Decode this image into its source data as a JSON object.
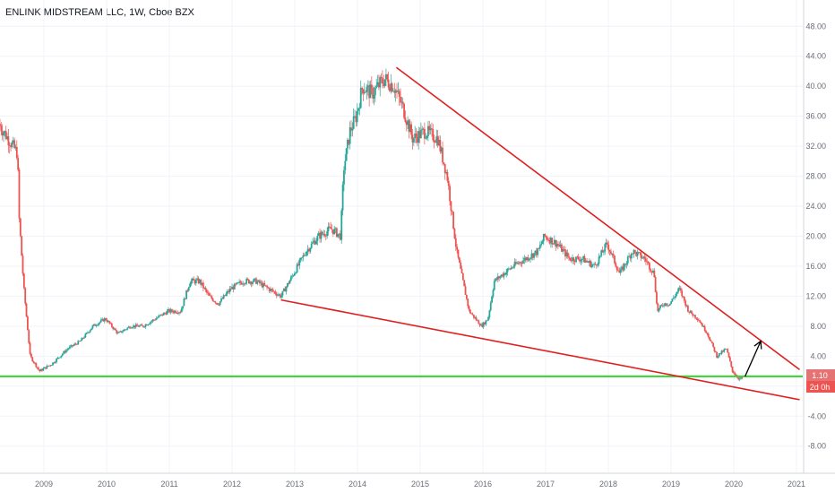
{
  "header": {
    "title": "ENLINK MIDSTREAM LLC, 1W, Cboe BZX"
  },
  "price_badge": {
    "value": "1.10",
    "countdown": "2d 0h"
  },
  "colors": {
    "up": "#26a69a",
    "down": "#ef5350",
    "trend": "#e02020",
    "support": "#31d431",
    "badge": "#e57373",
    "grid": "#f0f3fa",
    "arrow": "#000000"
  },
  "chart_data": {
    "type": "line",
    "title": "ENLINK MIDSTREAM LLC, 1W, Cboe BZX",
    "xlabel": "",
    "ylabel": "",
    "xlim": [
      2008.3,
      2021.1
    ],
    "ylim": [
      -11.5,
      51.5
    ],
    "grid": true,
    "x_ticks": [
      "2009",
      "2010",
      "2011",
      "2012",
      "2013",
      "2014",
      "2015",
      "2016",
      "2017",
      "2018",
      "2019",
      "2020",
      "2021"
    ],
    "y_ticks": [
      "48.00",
      "44.00",
      "40.00",
      "36.00",
      "32.00",
      "28.00",
      "24.00",
      "20.00",
      "16.00",
      "12.00",
      "8.00",
      "4.00",
      "0.00",
      "-4.00",
      "-8.00"
    ],
    "series": [
      {
        "x": [
          2008.3,
          2008.45,
          2008.6,
          2008.62,
          2008.7,
          2008.8,
          2008.95,
          2009.15,
          2009.4,
          2009.6,
          2009.8,
          2010.0,
          2010.2,
          2010.4,
          2010.6,
          2010.8,
          2011.0,
          2011.2,
          2011.35,
          2011.5,
          2011.65,
          2011.8,
          2012.0,
          2012.2,
          2012.4,
          2012.6,
          2012.8,
          2013.0,
          2013.2,
          2013.4,
          2013.6,
          2013.75,
          2013.8,
          2013.9,
          2014.0,
          2014.1,
          2014.25,
          2014.45,
          2014.6,
          2014.75,
          2014.9,
          2015.1,
          2015.3,
          2015.45,
          2015.6,
          2015.8,
          2016.0,
          2016.1,
          2016.2,
          2016.35,
          2016.5,
          2016.7,
          2016.9,
          2017.0,
          2017.2,
          2017.4,
          2017.6,
          2017.8,
          2018.0,
          2018.2,
          2018.4,
          2018.6,
          2018.75,
          2018.8,
          2018.9,
          2019.0,
          2019.15,
          2019.3,
          2019.45,
          2019.6,
          2019.75,
          2019.9,
          2020.0,
          2020.1,
          2020.15
        ],
        "values": [
          35,
          33,
          31,
          23,
          13,
          4,
          2,
          3,
          5,
          6,
          8,
          9,
          7,
          8,
          8,
          9,
          10,
          10,
          14,
          14,
          12,
          11,
          13,
          14,
          14,
          13,
          12,
          15,
          18,
          20,
          21,
          20,
          29,
          34,
          36,
          40,
          39,
          41,
          40,
          37,
          33,
          34,
          33,
          28,
          18,
          10,
          8,
          9,
          14,
          15,
          16,
          17,
          18,
          20,
          19,
          17,
          17,
          16,
          19,
          15,
          18,
          17,
          15,
          10,
          11,
          11,
          13,
          10,
          9,
          7,
          4,
          5,
          2,
          1,
          1
        ]
      }
    ],
    "annotations": {
      "trendlines": [
        {
          "from": [
            2014.62,
            42.5
          ],
          "to": [
            2021.05,
            2.2
          ]
        },
        {
          "from": [
            2012.78,
            11.5
          ],
          "to": [
            2021.05,
            -1.8
          ]
        }
      ],
      "support_level": 1.3,
      "arrow": {
        "from": [
          2020.18,
          1.3
        ],
        "to": [
          2020.43,
          6.0
        ]
      },
      "last_price": 1.1
    }
  }
}
